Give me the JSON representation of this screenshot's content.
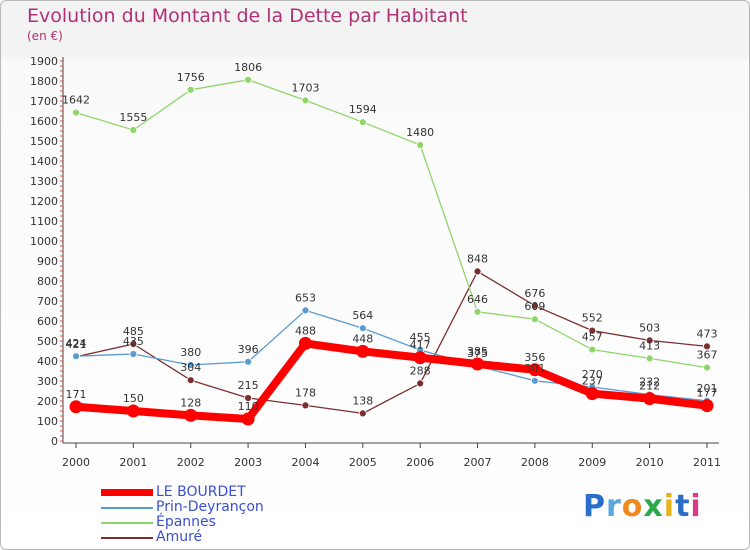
{
  "title": "Evolution du Montant de la Dette par Habitant",
  "subtitle": "(en €)",
  "logo_text": "Proxiti",
  "chart_data": {
    "type": "line",
    "title": "Evolution du Montant de la Dette par Habitant",
    "subtitle": "(en €)",
    "xlabel": "",
    "ylabel": "",
    "categories": [
      "2000",
      "2001",
      "2002",
      "2003",
      "2004",
      "2005",
      "2006",
      "2007",
      "2008",
      "2009",
      "2010",
      "2011"
    ],
    "ylim": [
      0,
      1900
    ],
    "yticks": [
      0,
      100,
      200,
      300,
      400,
      500,
      600,
      700,
      800,
      900,
      1000,
      1100,
      1200,
      1300,
      1400,
      1500,
      1600,
      1700,
      1800,
      1900
    ],
    "grid": false,
    "legend_position": "bottom-left",
    "series": [
      {
        "name": "LE BOURDET",
        "color": "#ff0000",
        "values": [
          171,
          150,
          128,
          110,
          488,
          448,
          417,
          385,
          356,
          237,
          212,
          177
        ]
      },
      {
        "name": "Prin-Deyrançon",
        "color": "#5a9bd0",
        "values": [
          424,
          435,
          380,
          396,
          653,
          564,
          455,
          375,
          301,
          270,
          232,
          201
        ]
      },
      {
        "name": "Épannes",
        "color": "#8fd66a",
        "values": [
          1642,
          1555,
          1756,
          1806,
          1703,
          1594,
          1480,
          646,
          609,
          457,
          413,
          367
        ]
      },
      {
        "name": "Amuré",
        "color": "#7a2f2f",
        "values": [
          421,
          485,
          304,
          215,
          178,
          138,
          288,
          848,
          676,
          552,
          503,
          473
        ]
      }
    ]
  }
}
